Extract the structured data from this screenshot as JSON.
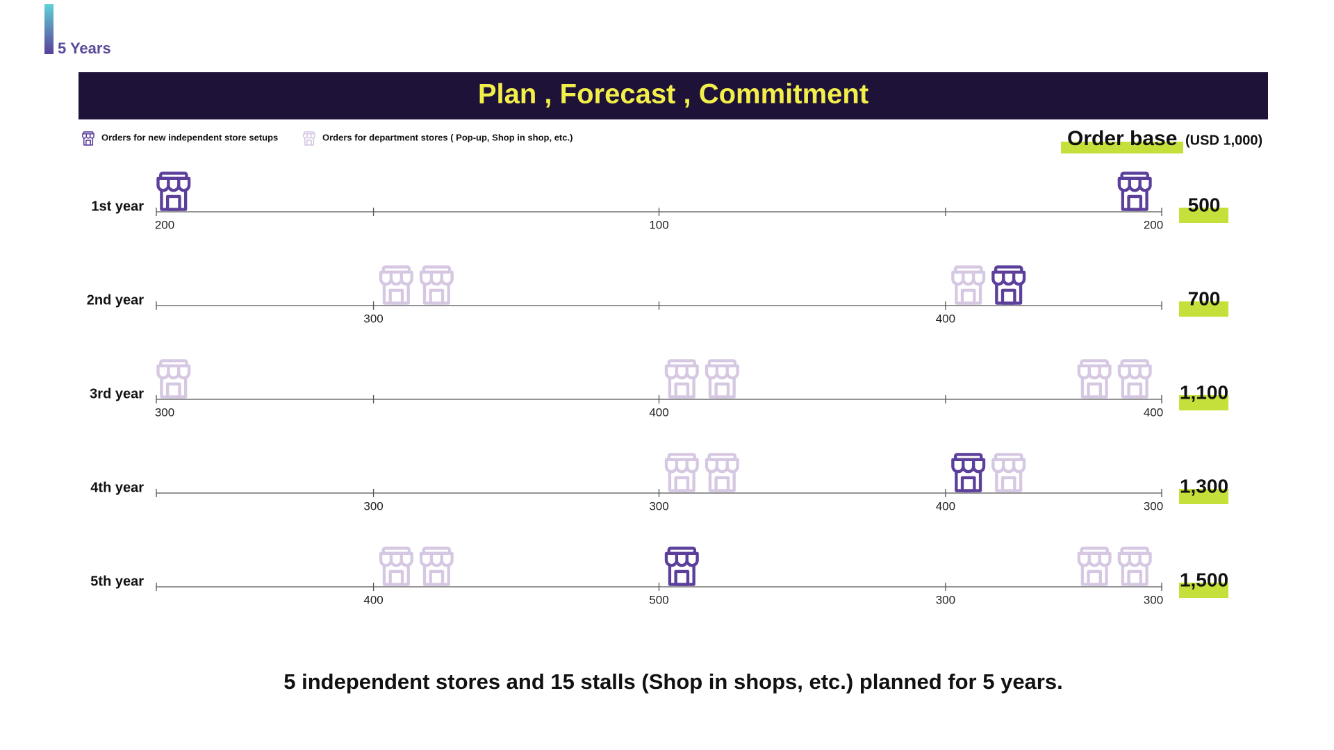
{
  "header": {
    "tag": "5 Years",
    "title": "Plan , Forecast , Commitment"
  },
  "legend": [
    {
      "label": "Orders for new independent store setups",
      "color": "#5b3f9a"
    },
    {
      "label": "Orders for department stores ( Pop-up, Shop in shop, etc.)",
      "color": "#d6c8e2"
    }
  ],
  "order_base": {
    "label": "Order base",
    "unit": "(USD 1,000)"
  },
  "rows": [
    {
      "label": "1st year",
      "total": "500",
      "ticks": [
        "200",
        null,
        "100",
        null,
        "200"
      ],
      "stores": [
        [
          0
        ],
        [],
        [],
        [],
        [
          0
        ]
      ]
    },
    {
      "label": "2nd year",
      "total": "700",
      "ticks": [
        null,
        "300",
        null,
        "400",
        null
      ],
      "stores": [
        [],
        [
          1,
          1
        ],
        [],
        [
          1,
          0
        ],
        []
      ]
    },
    {
      "label": "3rd year",
      "total": "1,100",
      "ticks": [
        "300",
        null,
        "400",
        null,
        "400"
      ],
      "stores": [
        [
          1
        ],
        [],
        [
          1,
          1
        ],
        [],
        [
          1,
          1
        ]
      ]
    },
    {
      "label": "4th year",
      "total": "1,300",
      "ticks": [
        null,
        "300",
        "300",
        "400",
        "300"
      ],
      "stores": [
        [],
        [],
        [
          1,
          1
        ],
        [
          0,
          1
        ],
        []
      ]
    },
    {
      "label": "5th year",
      "total": "1,500",
      "ticks": [
        null,
        "400",
        "500",
        "300",
        "300"
      ],
      "stores": [
        [],
        [
          1,
          1
        ],
        [
          0
        ],
        [],
        [
          1,
          1
        ]
      ]
    }
  ],
  "footer": "5 independent stores and 15 stalls (Shop in shops, etc.) planned for 5 years."
}
